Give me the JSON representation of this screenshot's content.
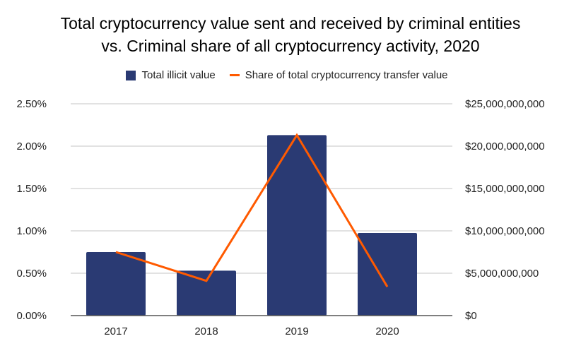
{
  "chart_data": {
    "type": "bar+line",
    "title": "Total cryptocurrency value sent and received by criminal entities",
    "subtitle": "vs. Criminal share of all cryptocurrency activity, 2020",
    "categories": [
      "2017",
      "2018",
      "2019",
      "2020"
    ],
    "series": [
      {
        "name": "Total illicit value",
        "type": "bar",
        "axis": "right",
        "color": "#2a3a73",
        "values": [
          7500000000,
          5300000000,
          21300000000,
          9750000000
        ]
      },
      {
        "name": "Share of total cryptocurrency transfer value",
        "type": "line",
        "axis": "left",
        "color": "#ff5a00",
        "values": [
          0.75,
          0.41,
          2.13,
          0.34
        ]
      }
    ],
    "left_axis": {
      "ylim": [
        0,
        2.5
      ],
      "ticks": [
        "0.00%",
        "0.50%",
        "1.00%",
        "1.50%",
        "2.00%",
        "2.50%"
      ]
    },
    "right_axis": {
      "ylim": [
        0,
        25000000000
      ],
      "ticks": [
        "$0",
        "$5,000,000,000",
        "$10,000,000,000",
        "$15,000,000,000",
        "$20,000,000,000",
        "$25,000,000,000"
      ]
    },
    "grid": true,
    "legend": "top"
  }
}
